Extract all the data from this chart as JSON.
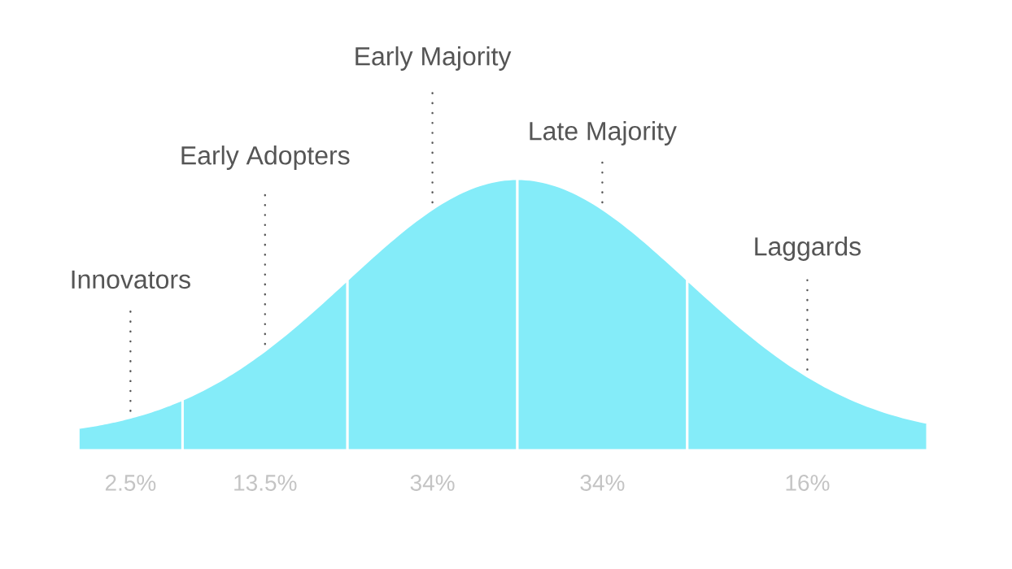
{
  "chart_data": {
    "type": "other",
    "categories": [
      "Innovators",
      "Early Adopters",
      "Early Majority",
      "Late Majority",
      "Laggards"
    ],
    "values": [
      2.5,
      13.5,
      34,
      34,
      16
    ],
    "value_labels": [
      "2.5%",
      "13.5%",
      "34%",
      "34%",
      "16%"
    ],
    "color": "#84ecf9"
  }
}
